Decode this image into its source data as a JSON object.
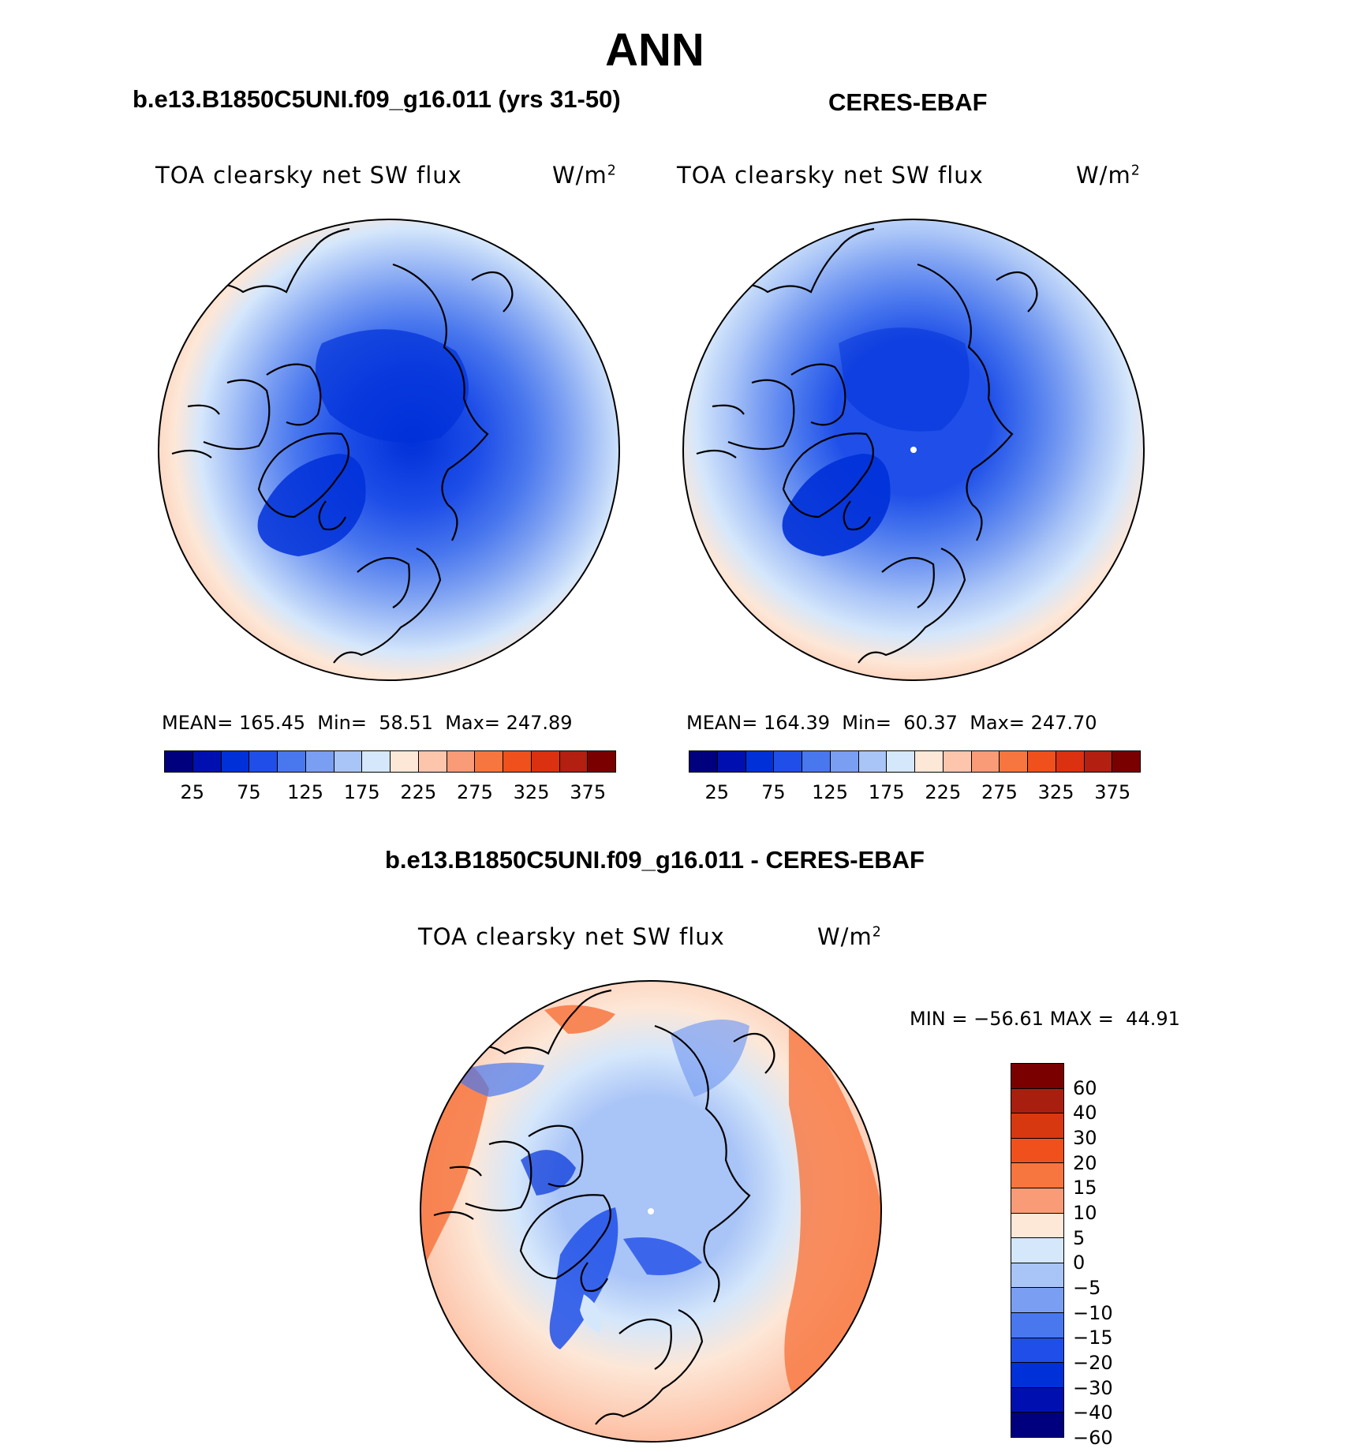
{
  "title": "ANN",
  "panels": [
    {
      "id": "model",
      "case_title": "b.e13.B1850C5UNI.f09_g16.011 (yrs 31-50)",
      "plot_title": "TOA clearsky net SW flux",
      "units_base": "W/m",
      "units_sup": "2",
      "mean_label": "MEAN=",
      "mean": "165.45",
      "min_label": "Min=",
      "min": "58.51",
      "max_label": "Max=",
      "max": "247.89"
    },
    {
      "id": "obs",
      "case_title": "CERES-EBAF",
      "plot_title": "TOA clearsky net SW flux",
      "units_base": "W/m",
      "units_sup": "2",
      "mean_label": "MEAN=",
      "mean": "164.39",
      "min_label": "Min=",
      "min": "60.37",
      "max_label": "Max=",
      "max": "247.70"
    },
    {
      "id": "diff",
      "case_title": "b.e13.B1850C5UNI.f09_g16.011 - CERES-EBAF",
      "plot_title": "TOA clearsky net SW flux",
      "units_base": "W/m",
      "units_sup": "2",
      "min_label": "MIN =",
      "min": "−56.61",
      "max_label": "MAX =",
      "max": "44.91"
    }
  ],
  "colorbar_abs": {
    "colors": [
      "#00007f",
      "#0010b0",
      "#0030d8",
      "#1f4fe8",
      "#4977ee",
      "#7a9ef2",
      "#a9c4f7",
      "#d5e7fb",
      "#fde7d7",
      "#fdc6ac",
      "#f99b76",
      "#f7763f",
      "#f0501c",
      "#db3110",
      "#b31f10",
      "#7a0000"
    ],
    "tick_labels": [
      "25",
      "75",
      "125",
      "175",
      "225",
      "275",
      "325",
      "375"
    ]
  },
  "colorbar_diff": {
    "colors": [
      "#7a0000",
      "#a81f10",
      "#d8380f",
      "#f0501c",
      "#f7763f",
      "#f99b76",
      "#fde7d7",
      "#d5e7fb",
      "#a9c4f7",
      "#7a9ef2",
      "#4977ee",
      "#1f4fe8",
      "#0030d8",
      "#0010b0",
      "#00007f"
    ],
    "tick_labels": [
      "60",
      "40",
      "30",
      "20",
      "15",
      "10",
      "5",
      "0",
      "−5",
      "−10",
      "−15",
      "−20",
      "−30",
      "−40",
      "−60"
    ]
  }
}
